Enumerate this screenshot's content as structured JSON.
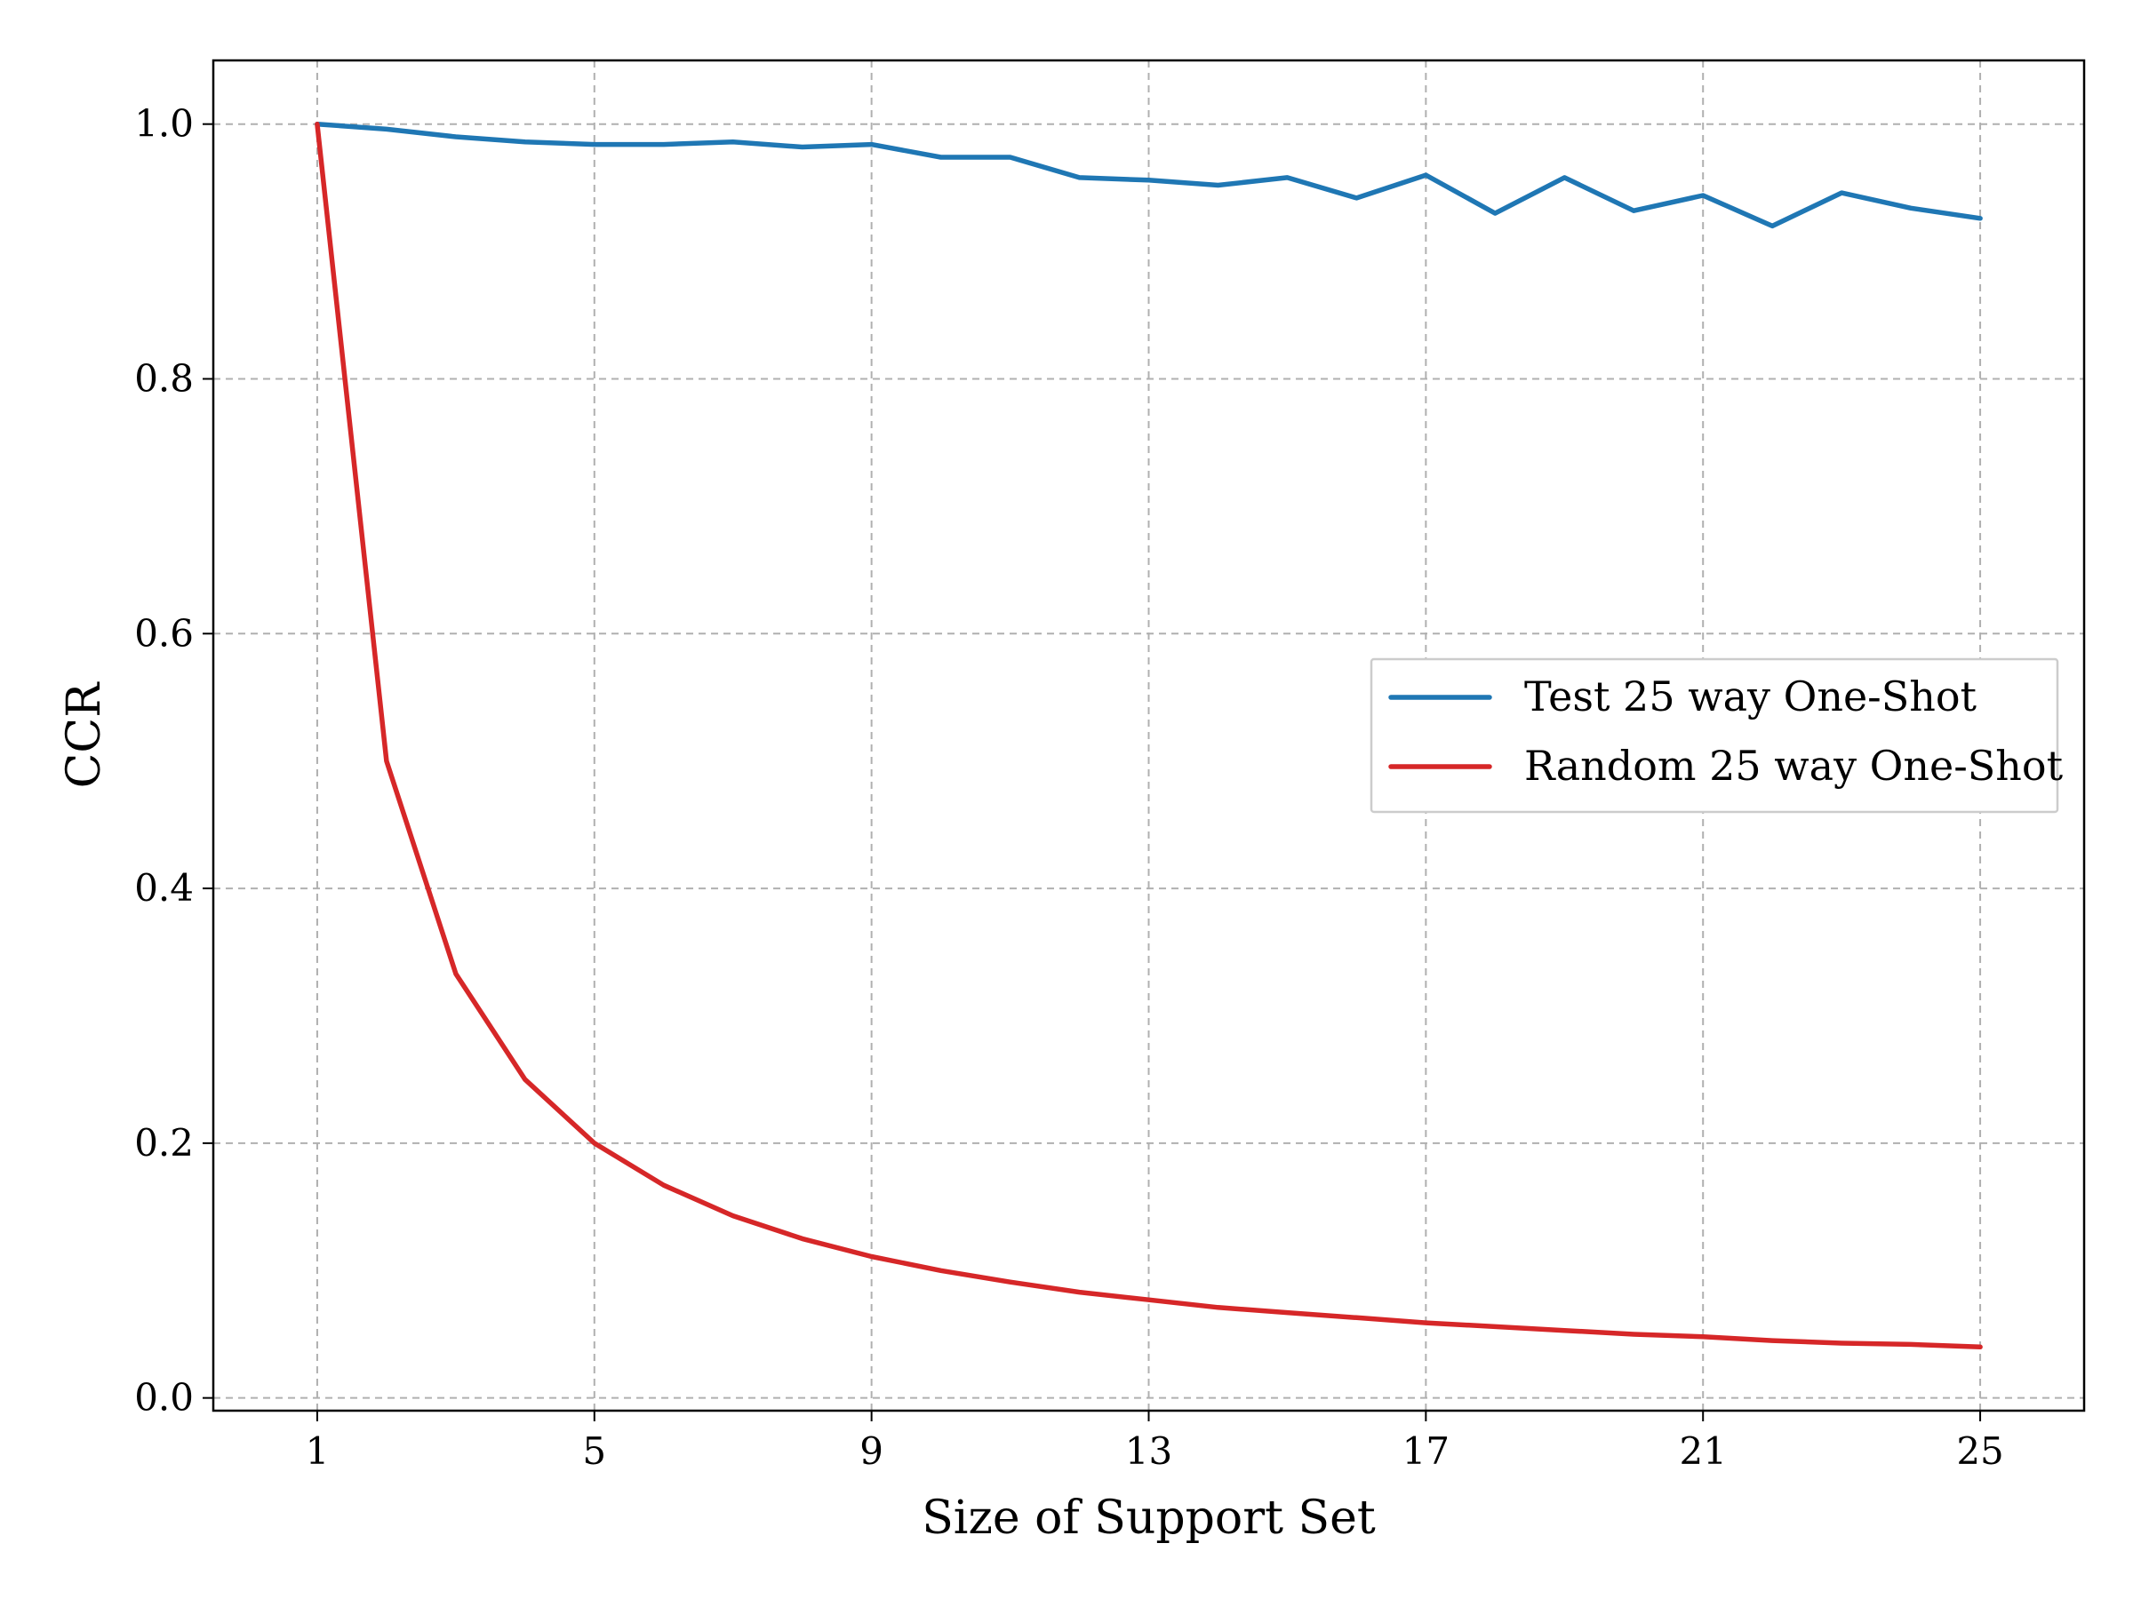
{
  "chart_data": {
    "type": "line",
    "title": "",
    "xlabel": "Size of Support Set",
    "ylabel": "CCR",
    "xlim": [
      -0.5,
      26.5
    ],
    "ylim": [
      -0.01,
      1.05
    ],
    "xticks": [
      1,
      5,
      9,
      13,
      17,
      21,
      25
    ],
    "xtick_labels": [
      "1",
      "5",
      "9",
      "13",
      "17",
      "21",
      "25"
    ],
    "yticks": [
      0.0,
      0.2,
      0.4,
      0.6,
      0.8,
      1.0
    ],
    "ytick_labels": [
      "0.0",
      "0.2",
      "0.4",
      "0.6",
      "0.8",
      "1.0"
    ],
    "grid": true,
    "legend_position": "center-right",
    "x": [
      1,
      2,
      3,
      4,
      5,
      6,
      7,
      8,
      9,
      10,
      11,
      12,
      13,
      14,
      15,
      16,
      17,
      18,
      19,
      20,
      21,
      22,
      23,
      24,
      25
    ],
    "series": [
      {
        "name": "Test 25 way One-Shot",
        "color": "#1f77b4",
        "values": [
          1.0,
          0.996,
          0.99,
          0.986,
          0.984,
          0.984,
          0.986,
          0.982,
          0.984,
          0.974,
          0.974,
          0.958,
          0.956,
          0.952,
          0.958,
          0.942,
          0.96,
          0.93,
          0.958,
          0.932,
          0.944,
          0.92,
          0.946,
          0.934,
          0.926
        ]
      },
      {
        "name": "Random 25 way One-Shot",
        "color": "#d62728",
        "values": [
          1.0,
          0.5,
          0.333,
          0.25,
          0.2,
          0.167,
          0.143,
          0.125,
          0.111,
          0.1,
          0.091,
          0.083,
          0.077,
          0.071,
          0.067,
          0.063,
          0.059,
          0.056,
          0.053,
          0.05,
          0.048,
          0.045,
          0.043,
          0.042,
          0.04
        ]
      }
    ]
  }
}
